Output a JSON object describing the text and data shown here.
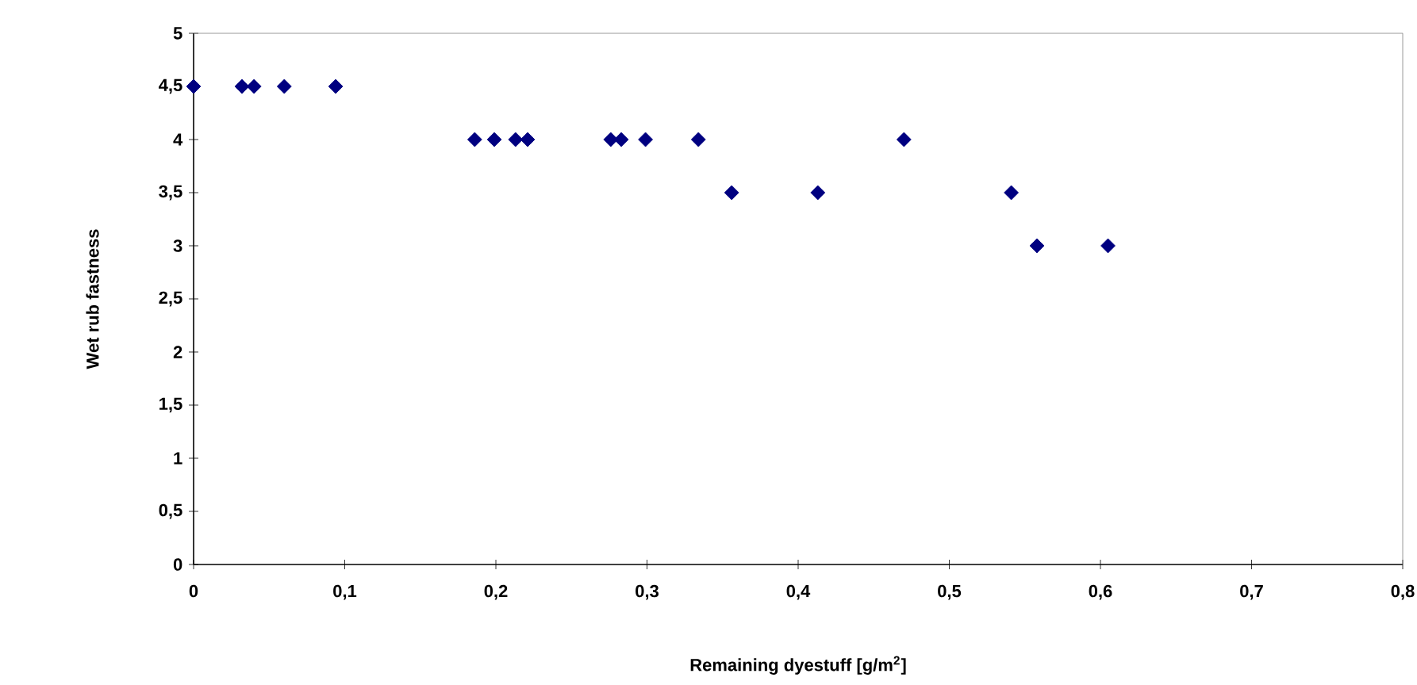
{
  "chart_data": {
    "type": "scatter",
    "xlabel": "Remaining dyestuff [g/m$^{2}$]",
    "ylabel": "Wet rub fastness",
    "x": [
      0,
      0.032,
      0.04,
      0.06,
      0.094,
      0.186,
      0.199,
      0.213,
      0.221,
      0.276,
      0.283,
      0.299,
      0.334,
      0.356,
      0.413,
      0.47,
      0.541,
      0.558,
      0.605
    ],
    "values": [
      4.5,
      4.5,
      4.5,
      4.5,
      4.5,
      4,
      4,
      4,
      4,
      4,
      4,
      4,
      4,
      3.5,
      3.5,
      4,
      3.5,
      3,
      3
    ],
    "color": "#000080",
    "marker": "diamond",
    "grid": false,
    "xlim": [
      0,
      0.8
    ],
    "xticks": [
      0,
      {
        "value": 0.1,
        "label": "0,1"
      },
      {
        "value": 0.2,
        "label": "0,2"
      },
      {
        "value": 0.3,
        "label": "0,3"
      },
      {
        "value": 0.4,
        "label": "0,4"
      },
      {
        "value": 0.5,
        "label": "0,5"
      },
      {
        "value": 0.6,
        "label": "0,6"
      },
      {
        "value": 0.7,
        "label": "0,7"
      },
      {
        "value": 0.8,
        "label": "0,8"
      }
    ],
    "ylim": [
      0,
      5
    ],
    "yticks": [
      0,
      {
        "value": 0.5,
        "label": "0,5"
      },
      1,
      {
        "value": 1.5,
        "label": "1,5"
      },
      2,
      {
        "value": 2.5,
        "label": "2,5"
      },
      3,
      {
        "value": 3.5,
        "label": "3,5"
      },
      4,
      {
        "value": 4.5,
        "label": "4,5"
      },
      5
    ]
  }
}
